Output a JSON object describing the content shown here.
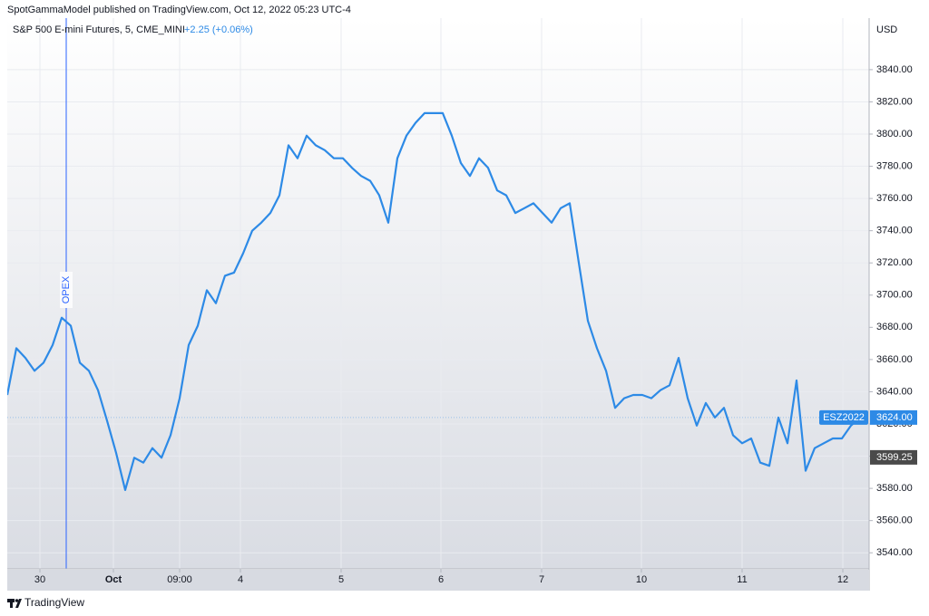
{
  "chart_data": {
    "type": "line",
    "header": "SpotGammaModel published on TradingView.com, Oct 12, 2022 05:23 UTC-4",
    "title": "S&P 500 E-mini Futures, 5, CME_MINI",
    "change": "+2.25 (+0.06%)",
    "currency": "USD",
    "brand": "TradingView",
    "x": [
      0,
      1,
      2,
      3,
      4,
      5,
      6,
      7,
      8,
      9,
      10,
      11,
      12,
      13,
      14,
      15,
      16,
      17,
      18,
      19,
      20,
      21,
      22,
      23,
      24,
      25,
      26,
      27,
      28,
      29,
      30,
      31,
      32,
      33,
      34,
      35,
      36,
      37,
      38,
      39,
      40,
      41,
      42,
      43,
      44,
      45,
      46,
      47,
      48,
      49,
      50,
      51,
      52,
      53,
      54,
      55,
      56,
      57,
      58,
      59,
      60,
      61,
      62,
      63,
      64,
      65,
      66,
      67,
      68,
      69,
      70,
      71,
      72,
      73,
      74,
      75,
      76,
      77,
      78,
      79,
      80,
      81,
      82,
      83,
      84,
      85,
      86,
      87,
      88,
      89,
      90,
      91,
      92,
      93,
      94
    ],
    "series": [
      {
        "name": "ESZ2022",
        "color": "#2d8ae6",
        "values": [
          3638,
          3667,
          3661,
          3653,
          3658,
          3669,
          3686,
          3681,
          3658,
          3653,
          3641,
          3622,
          3602,
          3579,
          3599,
          3596,
          3605,
          3599,
          3613,
          3636,
          3669,
          3681,
          3703,
          3695,
          3712,
          3714,
          3726,
          3740,
          3745,
          3751,
          3762,
          3793,
          3785,
          3799,
          3793,
          3790,
          3785,
          3785,
          3779,
          3774,
          3771,
          3762,
          3745,
          3785,
          3799,
          3807,
          3813,
          3813,
          3813,
          3799,
          3782,
          3774,
          3785,
          3779,
          3765,
          3762,
          3751,
          3754,
          3757,
          3751,
          3745,
          3754,
          3757,
          3720,
          3684,
          3667,
          3653,
          3630,
          3636,
          3638,
          3638,
          3636,
          3641,
          3644,
          3661,
          3636,
          3619,
          3633,
          3624,
          3630,
          3613,
          3608,
          3611,
          3596,
          3594,
          3624,
          3608,
          3647,
          3591,
          3605,
          3608,
          3611,
          3611,
          3619,
          3624
        ]
      }
    ],
    "last_price": {
      "value": 3624,
      "label": "3624.00"
    },
    "marker_price": 3599.25,
    "annotations": [
      {
        "x": 6.5,
        "label": "OPEX",
        "color": "#2962ff"
      }
    ],
    "xlim": [
      0,
      95
    ],
    "xticks": [
      {
        "value": 3.6,
        "label": "30"
      },
      {
        "value": 11.7,
        "label": "Oct"
      },
      {
        "value": 19,
        "label": "09:00"
      },
      {
        "value": 25.7,
        "label": "4"
      },
      {
        "value": 36.8,
        "label": "5"
      },
      {
        "value": 47.8,
        "label": "6"
      },
      {
        "value": 58.9,
        "label": "7"
      },
      {
        "value": 69.9,
        "label": "10"
      },
      {
        "value": 81,
        "label": "11"
      },
      {
        "value": 92.1,
        "label": "12"
      }
    ],
    "ylim": [
      3530,
      3872
    ],
    "yticks": [
      {
        "value": 3540,
        "label": "3540.00"
      },
      {
        "value": 3560,
        "label": "3560.00"
      },
      {
        "value": 3580,
        "label": "3580.00"
      },
      {
        "value": 3600,
        "label": "3600.00"
      },
      {
        "value": 3620,
        "label": "3620.00"
      },
      {
        "value": 3640,
        "label": "3640.00"
      },
      {
        "value": 3660,
        "label": "3660.00"
      },
      {
        "value": 3680,
        "label": "3680.00"
      },
      {
        "value": 3700,
        "label": "3700.00"
      },
      {
        "value": 3720,
        "label": "3720.00"
      },
      {
        "value": 3740,
        "label": "3740.00"
      },
      {
        "value": 3760,
        "label": "3760.00"
      },
      {
        "value": 3780,
        "label": "3780.00"
      },
      {
        "value": 3800,
        "label": "3800.00"
      },
      {
        "value": 3820,
        "label": "3820.00"
      },
      {
        "value": 3840,
        "label": "3840.00"
      }
    ],
    "grid": true
  }
}
